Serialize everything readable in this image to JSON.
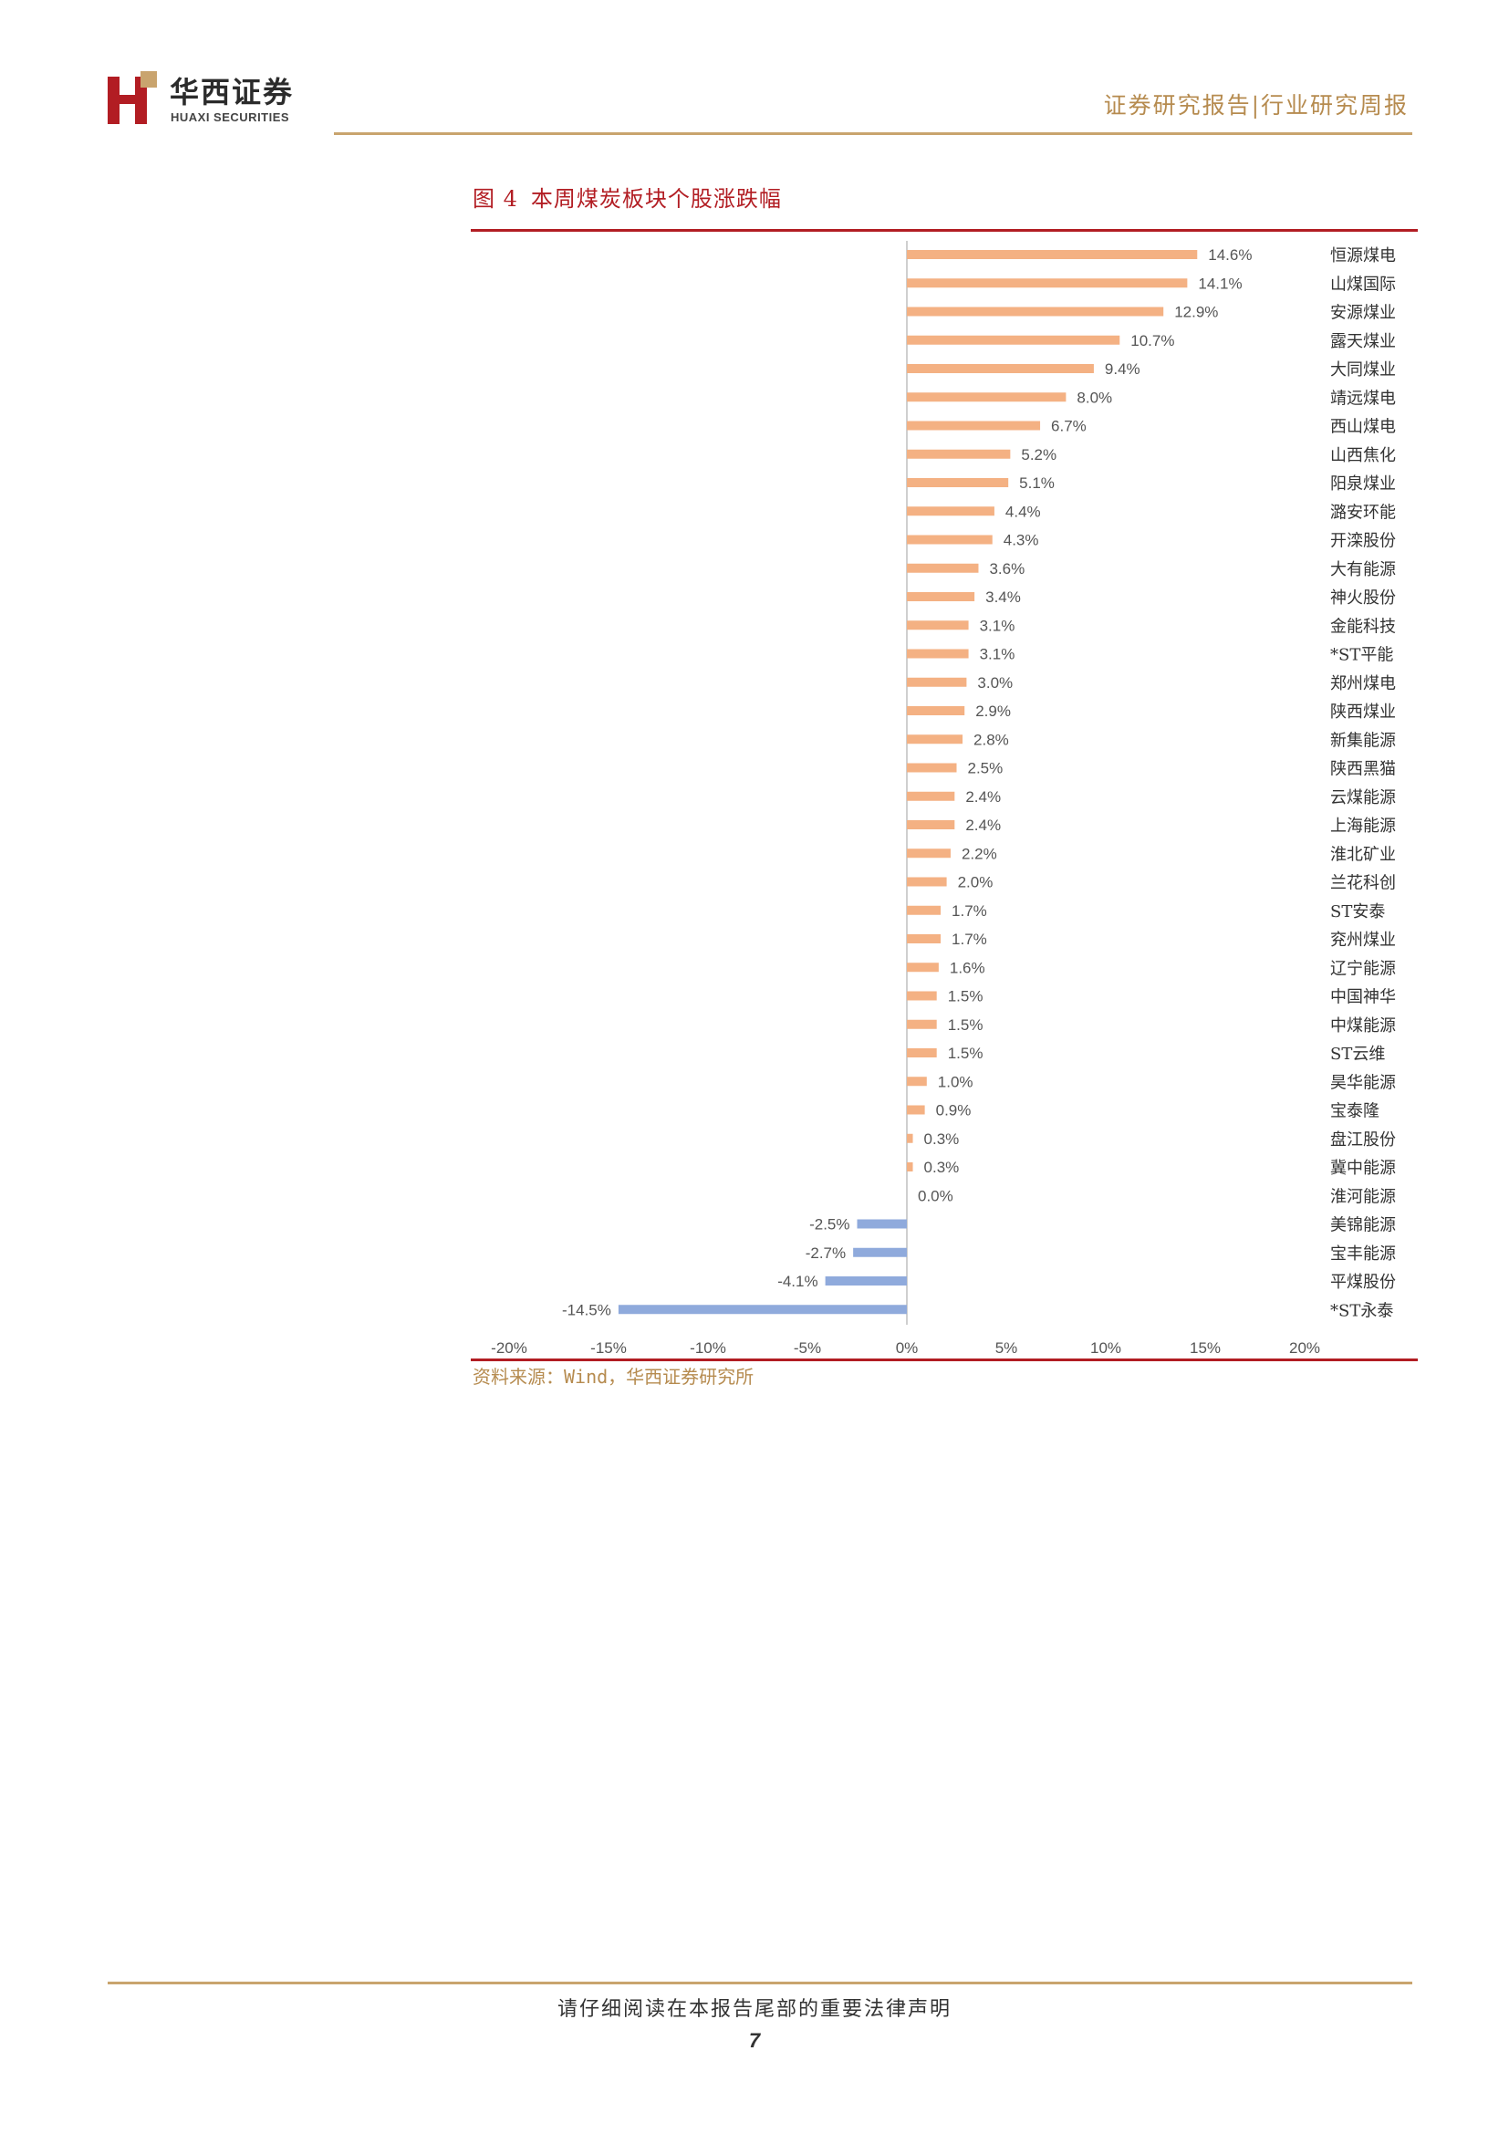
{
  "header": {
    "brand_cn": "华西证券",
    "brand_en": "HUAXI SECURITIES",
    "report_type": "证券研究报告|行业研究周报"
  },
  "figure": {
    "number": "图 4",
    "title": "本周煤炭板块个股涨跌幅",
    "source": "资料来源：Wind，华西证券研究所"
  },
  "colors": {
    "positive": "#f4b183",
    "negative": "#8faadc",
    "accent_red": "#b21d23",
    "gold": "#c9a46e"
  },
  "chart_data": {
    "type": "bar",
    "orientation": "horizontal",
    "categories": [
      "恒源煤电",
      "山煤国际",
      "安源煤业",
      "露天煤业",
      "大同煤业",
      "靖远煤电",
      "西山煤电",
      "山西焦化",
      "阳泉煤业",
      "潞安环能",
      "开滦股份",
      "大有能源",
      "神火股份",
      "金能科技",
      "*ST平能",
      "郑州煤电",
      "陕西煤业",
      "新集能源",
      "陕西黑猫",
      "云煤能源",
      "上海能源",
      "淮北矿业",
      "兰花科创",
      "ST安泰",
      "兖州煤业",
      "辽宁能源",
      "中国神华",
      "中煤能源",
      "ST云维",
      "昊华能源",
      "宝泰隆",
      "盘江股份",
      "冀中能源",
      "淮河能源",
      "美锦能源",
      "宝丰能源",
      "平煤股份",
      "*ST永泰"
    ],
    "values": [
      14.6,
      14.1,
      12.9,
      10.7,
      9.4,
      8.0,
      6.7,
      5.2,
      5.1,
      4.4,
      4.3,
      3.6,
      3.4,
      3.1,
      3.1,
      3.0,
      2.9,
      2.8,
      2.5,
      2.4,
      2.4,
      2.2,
      2.0,
      1.7,
      1.7,
      1.6,
      1.5,
      1.5,
      1.5,
      1.0,
      0.9,
      0.3,
      0.3,
      0.0,
      -2.5,
      -2.7,
      -4.1,
      -14.5
    ],
    "value_labels": [
      "14.6%",
      "14.1%",
      "12.9%",
      "10.7%",
      "9.4%",
      "8.0%",
      "6.7%",
      "5.2%",
      "5.1%",
      "4.4%",
      "4.3%",
      "3.6%",
      "3.4%",
      "3.1%",
      "3.1%",
      "3.0%",
      "2.9%",
      "2.8%",
      "2.5%",
      "2.4%",
      "2.4%",
      "2.2%",
      "2.0%",
      "1.7%",
      "1.7%",
      "1.6%",
      "1.5%",
      "1.5%",
      "1.5%",
      "1.0%",
      "0.9%",
      "0.3%",
      "0.3%",
      "0.0%",
      "-2.5%",
      "-2.7%",
      "-4.1%",
      "-14.5%"
    ],
    "xlim": [
      -20,
      20
    ],
    "x_ticks": [
      "-20%",
      "-15%",
      "-10%",
      "-5%",
      "0%",
      "5%",
      "10%",
      "15%",
      "20%"
    ],
    "grid": false,
    "unit": "%"
  },
  "footer": {
    "disclaimer": "请仔细阅读在本报告尾部的重要法律声明",
    "page": "7"
  }
}
